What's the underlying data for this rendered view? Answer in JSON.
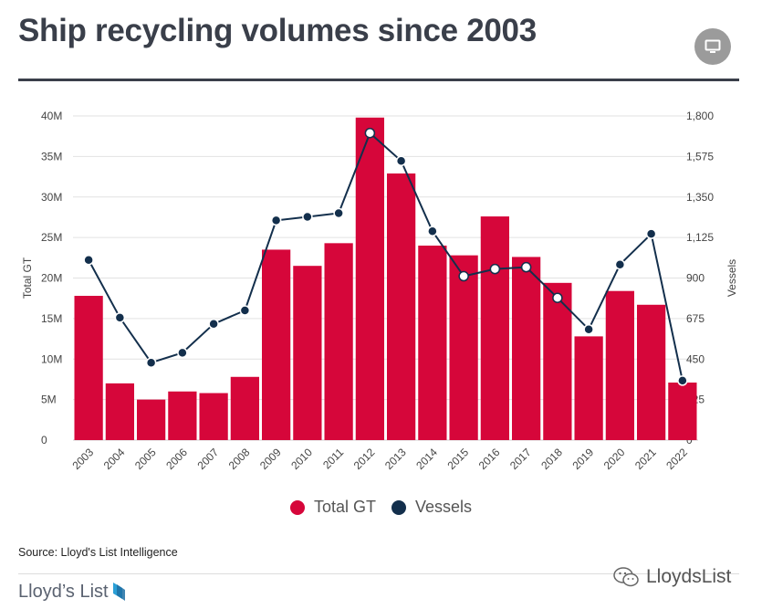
{
  "title": "Ship recycling volumes since 2003",
  "source_text": "Source: Lloyd's List Intelligence",
  "brand_text": "Lloyd’s List",
  "watermark_text": "LloydsList",
  "icons": {
    "view_toggle": "monitor-icon",
    "brand_mark": "lloyds-list-logo-icon",
    "watermark_mark": "wechat-icon"
  },
  "colors": {
    "bars": "#d6063a",
    "line": "#132f4c",
    "title": "#3a3f4a",
    "grid": "#e2e2e2"
  },
  "chart_data": {
    "type": "bar+line",
    "categories": [
      "2003",
      "2004",
      "2005",
      "2006",
      "2007",
      "2008",
      "2009",
      "2010",
      "2011",
      "2012",
      "2013",
      "2014",
      "2015",
      "2016",
      "2017",
      "2018",
      "2019",
      "2020",
      "2021",
      "2022"
    ],
    "series": [
      {
        "name": "Total GT",
        "type": "bar",
        "axis": "left",
        "color": "#d6063a",
        "values": [
          17800000,
          7000000,
          5000000,
          6000000,
          5800000,
          7800000,
          23500000,
          21500000,
          24300000,
          39800000,
          32900000,
          24000000,
          22800000,
          27600000,
          22600000,
          19400000,
          12800000,
          18400000,
          16700000,
          7100000
        ]
      },
      {
        "name": "Vessels",
        "type": "line",
        "axis": "right",
        "color": "#132f4c",
        "values": [
          1000,
          680,
          430,
          485,
          645,
          720,
          1220,
          1240,
          1260,
          1705,
          1550,
          1160,
          910,
          950,
          960,
          790,
          615,
          975,
          1145,
          330
        ]
      }
    ],
    "left_axis": {
      "label": "Total GT",
      "min": 0,
      "max": 40000000,
      "ticks": [
        "0",
        "5M",
        "10M",
        "15M",
        "20M",
        "25M",
        "30M",
        "35M",
        "40M"
      ]
    },
    "right_axis": {
      "label": "Vessels",
      "min": 0,
      "max": 1800,
      "ticks": [
        "0",
        "225",
        "450",
        "675",
        "900",
        "1,125",
        "1,350",
        "1,575",
        "1,800"
      ]
    },
    "grid": true,
    "legend": {
      "position": "bottom",
      "entries": [
        "Total GT",
        "Vessels"
      ]
    }
  }
}
